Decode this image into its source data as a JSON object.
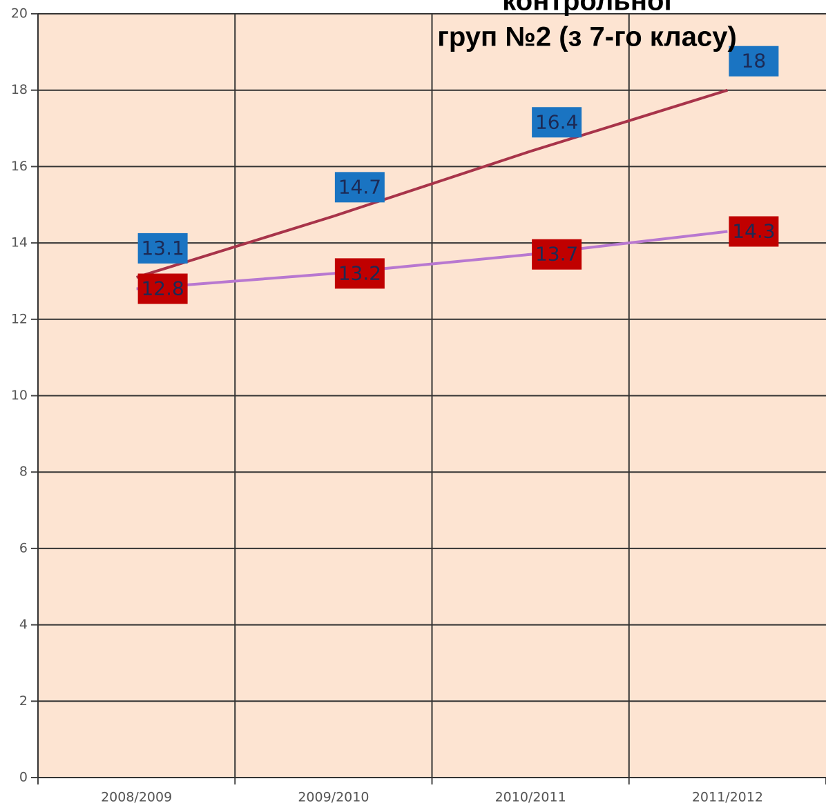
{
  "chart_data": {
    "type": "line",
    "title": [
      "контрольної",
      "груп №2 (з 7-го класу)"
    ],
    "categories": [
      "2008/2009",
      "2009/2010",
      "2010/2011",
      "2011/2012"
    ],
    "series": [
      {
        "color": "#a8344a",
        "label_color": "#1a74c2",
        "values": [
          13.1,
          14.7,
          16.4,
          18
        ]
      },
      {
        "color": "#b878d0",
        "label_color": "#c00000",
        "values": [
          12.8,
          13.2,
          13.7,
          14.3
        ]
      }
    ],
    "ylim": [
      0,
      20
    ],
    "yticks": [
      0,
      2,
      4,
      6,
      8,
      10,
      12,
      14,
      16,
      18,
      20
    ],
    "grid": true
  }
}
